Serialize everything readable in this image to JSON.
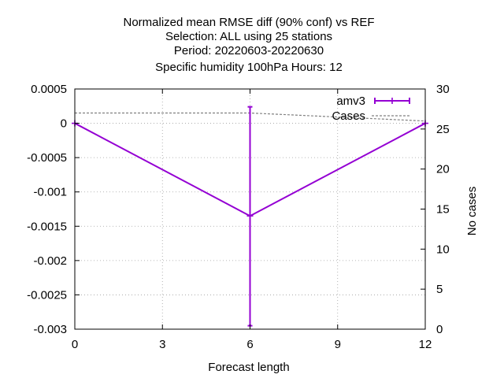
{
  "chart_data": {
    "type": "line",
    "title_lines": [
      "Normalized mean RMSE diff (90% conf) vs REF",
      "Selection: ALL using    25 stations",
      "Period: 20220603-20220630",
      "Specific humidity 100hPa   Hours:  12"
    ],
    "xlabel": "Forecast length",
    "ylabel_right": "No cases",
    "xlim": [
      0,
      12
    ],
    "ylim": [
      -0.003,
      0.0005
    ],
    "y2lim": [
      0,
      30
    ],
    "x_ticks": [
      0,
      3,
      6,
      9,
      12
    ],
    "x_tick_labels": [
      "0",
      "3",
      "6",
      "9",
      "12"
    ],
    "y_ticks": [
      0.0005,
      0,
      -0.0005,
      -0.001,
      -0.0015,
      -0.002,
      -0.0025,
      -0.003
    ],
    "y_tick_labels": [
      "0.0005",
      "0",
      "-0.0005",
      "-0.001",
      "-0.0015",
      "-0.002",
      "-0.0025",
      "-0.003"
    ],
    "y2_ticks": [
      30,
      25,
      20,
      15,
      10,
      5,
      0
    ],
    "y2_tick_labels": [
      "30",
      "25",
      "20",
      "15",
      "10",
      "5",
      "0"
    ],
    "grid": true,
    "legend_position": "top-right",
    "series": [
      {
        "name": "amv3",
        "color": "#9400d3",
        "x": [
          0,
          6,
          12
        ],
        "y": [
          0,
          -0.00135,
          0
        ],
        "err_low": [
          0,
          -0.00295,
          0
        ],
        "err_high": [
          0,
          0.00024,
          0
        ]
      }
    ],
    "cases": {
      "name": "Cases",
      "color": "#808080",
      "x": [
        0,
        3,
        6,
        9,
        12
      ],
      "y": [
        27,
        27,
        27,
        26.5,
        26
      ]
    }
  }
}
